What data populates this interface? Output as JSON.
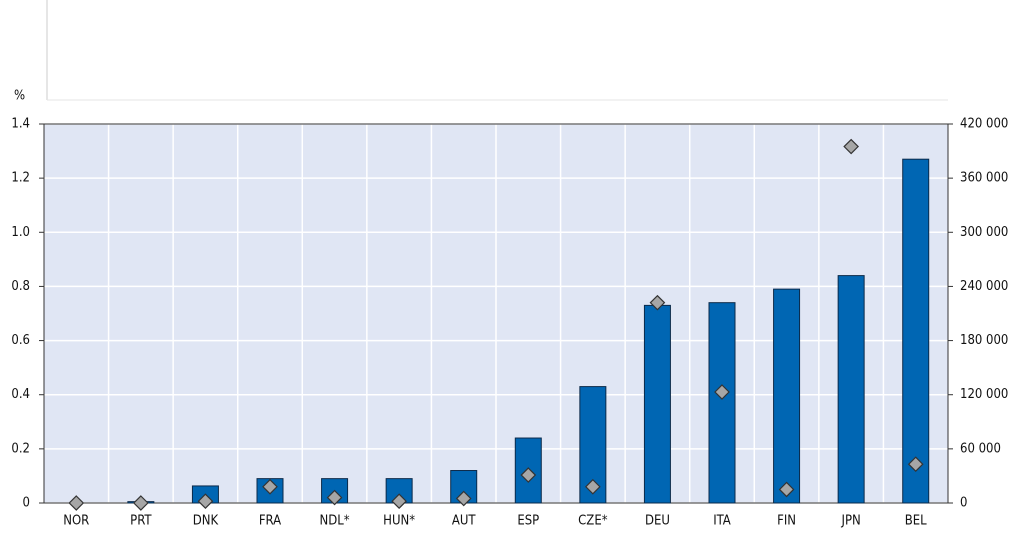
{
  "chart_data": {
    "type": "bar",
    "y_label": "%",
    "categories": [
      "NOR",
      "PRT",
      "DNK",
      "FRA",
      "NDL*",
      "HUN*",
      "AUT",
      "ESP",
      "CZE*",
      "DEU",
      "ITA",
      "FIN",
      "JPN",
      "BEL"
    ],
    "series": [
      {
        "color": "#0066b3",
        "values": [
          0,
          0.005,
          0.063,
          0.09,
          0.09,
          0.09,
          0.12,
          0.24,
          0.43,
          0.73,
          0.74,
          0.79,
          0.84,
          1.27
        ]
      },
      {
        "color": "#a6a6a6",
        "axis": "y2",
        "values": [
          0,
          0,
          2000,
          18000,
          6000,
          2000,
          5000,
          31000,
          18000,
          222000,
          123000,
          15000,
          395000,
          43000
        ]
      }
    ],
    "ylim": [
      0,
      1.4
    ],
    "yticks": [
      0,
      0.2,
      0.4,
      0.6,
      0.8,
      {
        "value": 1,
        "label": "1.0"
      },
      1.2,
      1.4
    ],
    "y2lim": [
      0,
      420000
    ],
    "y2ticks": [
      0,
      {
        "value": 60000,
        "label": "60 000"
      },
      {
        "value": 120000,
        "label": "120 000"
      },
      {
        "value": 180000,
        "label": "180 000"
      },
      {
        "value": 240000,
        "label": "240 000"
      },
      {
        "value": 300000,
        "label": "300 000"
      },
      {
        "value": 360000,
        "label": "360 000"
      },
      {
        "value": 420000,
        "label": "420 000"
      }
    ],
    "grid": true
  }
}
